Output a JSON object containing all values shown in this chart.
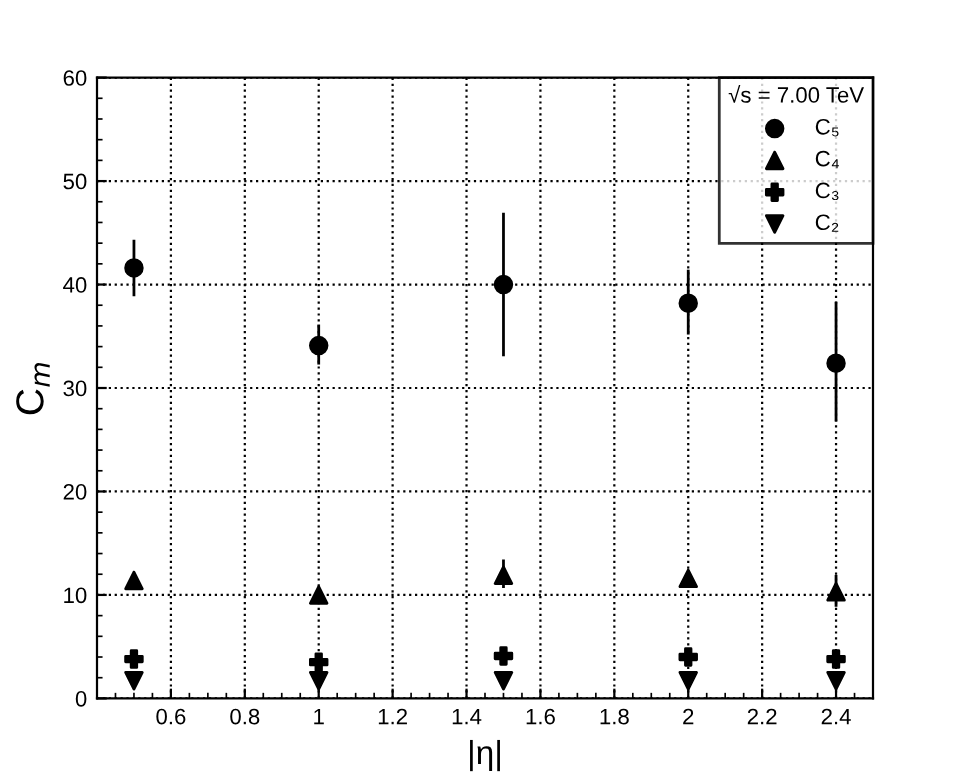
{
  "chart_data": {
    "type": "scatter",
    "xlabel": "|η|",
    "ylabel": "C$_{m}$",
    "legend_title": "√s = 7.00 TeV",
    "legend": "top right",
    "grid": true,
    "xlim": [
      0.4,
      2.5
    ],
    "xticks": [
      0.6,
      0.8,
      1,
      1.2,
      1.4,
      1.6,
      1.8,
      2,
      2.2,
      2.4
    ],
    "ylim": [
      0,
      60
    ],
    "yticks": [
      0,
      10,
      20,
      30,
      40,
      50,
      60
    ],
    "x": [
      0.5,
      1,
      1.5,
      2,
      2.4
    ],
    "series": [
      {
        "name": "C₅",
        "color": "#000000",
        "marker": "circle",
        "values": [
          41.6,
          34.1,
          40.0,
          38.2,
          32.4
        ],
        "errors": [
          [
            39.0,
            44.2
          ],
          [
            32.4,
            36.0
          ],
          [
            33.2,
            46.8
          ],
          [
            35.3,
            41.3
          ],
          [
            26.9,
            38.2
          ]
        ]
      },
      {
        "name": "C₄",
        "color": "#000000",
        "marker": "triangle",
        "values": [
          11.4,
          10.0,
          11.9,
          11.6,
          10.3
        ],
        "errors": [
          null,
          null,
          [
            10.8,
            13.3
          ],
          null,
          [
            9.0,
            11.8
          ]
        ]
      },
      {
        "name": "C₃",
        "color": "#000000",
        "marker": "cross",
        "values": [
          3.8,
          3.5,
          4.1,
          4.0,
          3.8
        ],
        "errors": [
          null,
          null,
          null,
          null,
          null
        ]
      },
      {
        "name": "C₂",
        "color": "#000000",
        "marker": "triangle_down",
        "values": [
          1.7,
          1.7,
          1.7,
          1.7,
          1.7
        ],
        "errors": [
          null,
          null,
          null,
          null,
          null
        ]
      }
    ]
  }
}
